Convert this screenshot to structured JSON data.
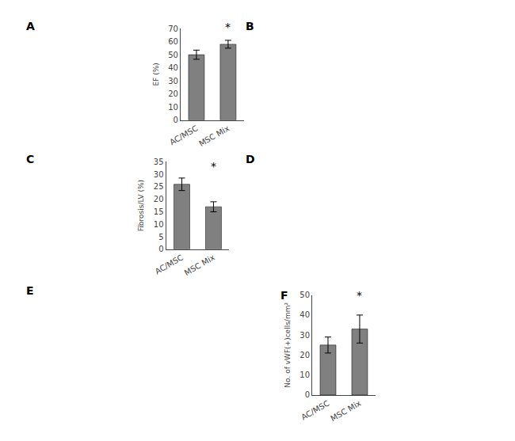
{
  "chart_data": [
    {
      "type": "bar",
      "categories": [
        "AC/MSC",
        "MSC Mix"
      ],
      "values": [
        50.0,
        58.0
      ],
      "errors": [
        3.5,
        3.0
      ],
      "ylabel": "EF (%)",
      "ylim": [
        0,
        70
      ],
      "yticks": [
        0,
        10,
        20,
        30,
        40,
        50,
        60,
        70
      ],
      "color": "#808080",
      "grid": false,
      "annotations": [
        {
          "text": "*",
          "x": "MSC Mix",
          "y": 65
        }
      ]
    },
    {
      "type": "bar",
      "categories": [
        "AC/MSC",
        "MSC Mix"
      ],
      "values": [
        26.0,
        17.0
      ],
      "errors": [
        2.5,
        2.0
      ],
      "ylabel": "Fibrosis/LV (%)",
      "ylim": [
        0,
        35
      ],
      "yticks": [
        0,
        5,
        10,
        15,
        20,
        25,
        30,
        35
      ],
      "color": "#808080",
      "grid": false,
      "annotations": [
        {
          "text": "*",
          "x": "MSC Mix",
          "y": 30
        }
      ]
    },
    {
      "type": "bar",
      "title": "F",
      "categories": [
        "AC/MSC",
        "MSC Mix"
      ],
      "values": [
        25.0,
        33.0
      ],
      "errors": [
        4.0,
        7.0
      ],
      "ylabel": "No. of vWF(+)cells/mm²",
      "ylim": [
        0,
        50
      ],
      "yticks": [
        0,
        10,
        20,
        30,
        40,
        50
      ],
      "color": "#808080",
      "grid": false,
      "annotations": [
        {
          "text": "*",
          "x": "MSC Mix",
          "y": 46
        }
      ]
    }
  ],
  "annotations": [
    {
      "text": "A"
    },
    {
      "text": "B"
    },
    {
      "text": "C"
    },
    {
      "text": "D"
    },
    {
      "text": "E"
    }
  ]
}
